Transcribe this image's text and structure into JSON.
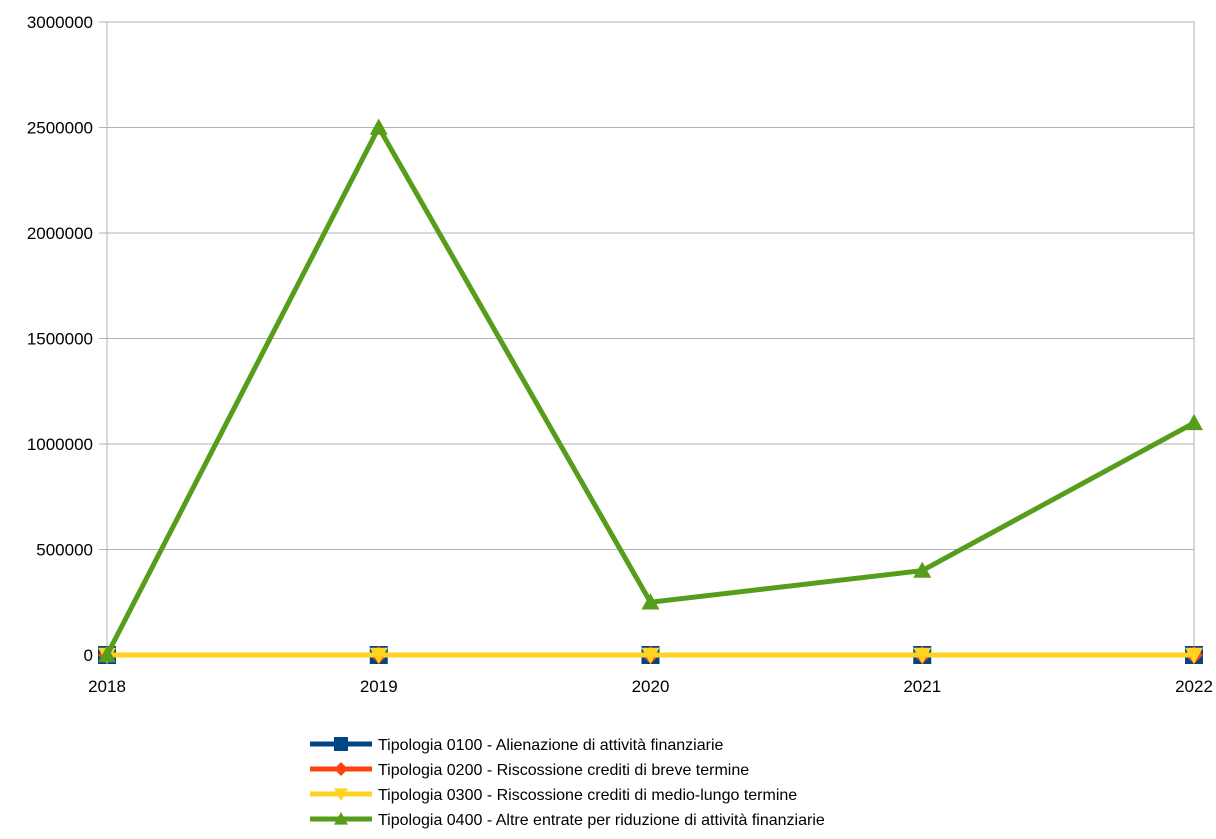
{
  "chart_data": {
    "type": "line",
    "title": "",
    "xlabel": "",
    "ylabel": "",
    "x": [
      "2018",
      "2019",
      "2020",
      "2021",
      "2022"
    ],
    "ylim": [
      0,
      3000000
    ],
    "yticks": [
      0,
      500000,
      1000000,
      1500000,
      2000000,
      2500000,
      3000000
    ],
    "ytick_labels": [
      "0",
      "500000",
      "1000000",
      "1500000",
      "2000000",
      "2500000",
      "3000000"
    ],
    "grid": "horizontal",
    "legend_position": "bottom",
    "series": [
      {
        "name": "Tipologia 0100 - Alienazione di attività finanziarie",
        "values": [
          0,
          0,
          0,
          0,
          0
        ],
        "color": "#004586",
        "marker": "square"
      },
      {
        "name": "Tipologia 0200 - Riscossione crediti di breve termine",
        "values": [
          0,
          0,
          0,
          0,
          0
        ],
        "color": "#ff420e",
        "marker": "diamond"
      },
      {
        "name": "Tipologia 0300 - Riscossione crediti di medio-lungo termine",
        "values": [
          0,
          0,
          0,
          0,
          0
        ],
        "color": "#ffd320",
        "marker": "triangle-down"
      },
      {
        "name": "Tipologia 0400 - Altre entrate per riduzione di attività finanziarie",
        "values": [
          0,
          2500000,
          250000,
          400000,
          1100000
        ],
        "color": "#579d1c",
        "marker": "triangle-up"
      }
    ]
  }
}
